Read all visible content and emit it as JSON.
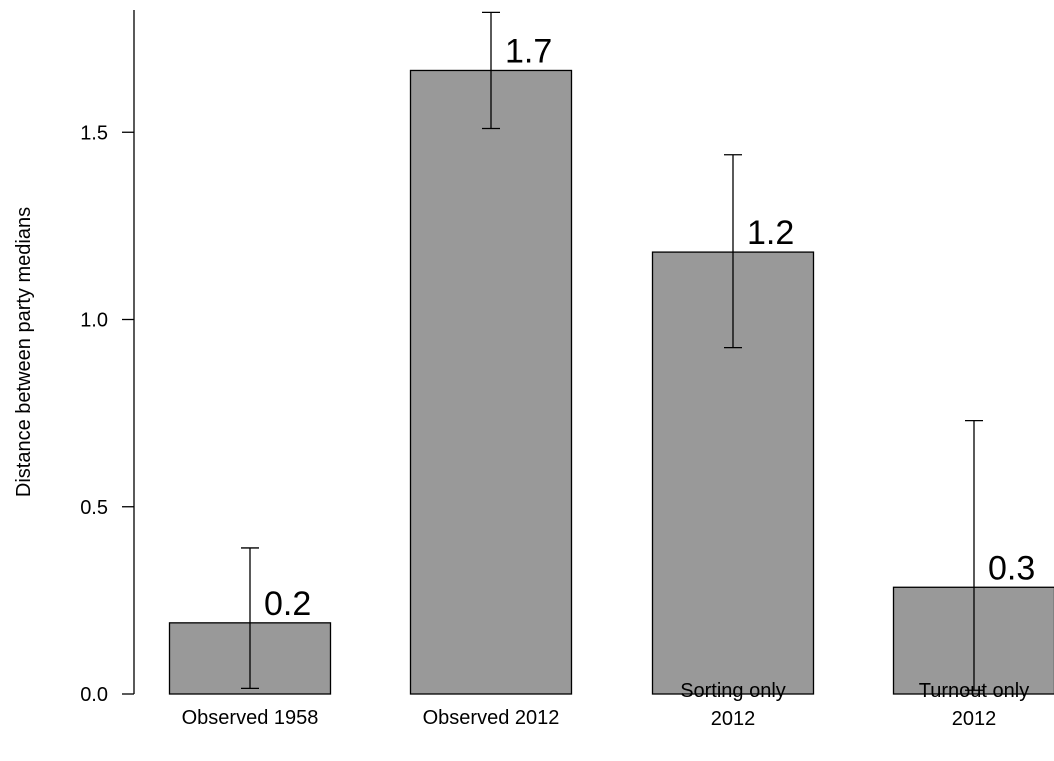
{
  "chart_data": {
    "type": "bar",
    "ylabel": "Distance between party medians",
    "xlabel": "",
    "categories": [
      [
        "Observed 1958"
      ],
      [
        "Observed 2012"
      ],
      [
        "Sorting only",
        "2012"
      ],
      [
        "Turnout only",
        "2012"
      ]
    ],
    "values": [
      0.19,
      1.665,
      1.18,
      0.285
    ],
    "data_labels": [
      "0.2",
      "1.7",
      "1.2",
      "0.3"
    ],
    "error_bars": [
      {
        "low": 0.015,
        "high": 0.39
      },
      {
        "low": 1.51,
        "high": 1.82
      },
      {
        "low": 0.925,
        "high": 1.44
      },
      {
        "low": 0.01,
        "high": 0.73
      }
    ],
    "yticks": [
      {
        "value": 0.0,
        "label": "0.0"
      },
      {
        "value": 0.5,
        "label": "0.5"
      },
      {
        "value": 1.0,
        "label": "1.0"
      },
      {
        "value": 1.5,
        "label": "1.5"
      }
    ],
    "ylim": [
      0,
      1.83
    ],
    "bar_color": "#999999",
    "bar_border_color": "#000000",
    "grid": false,
    "legend": "none"
  }
}
